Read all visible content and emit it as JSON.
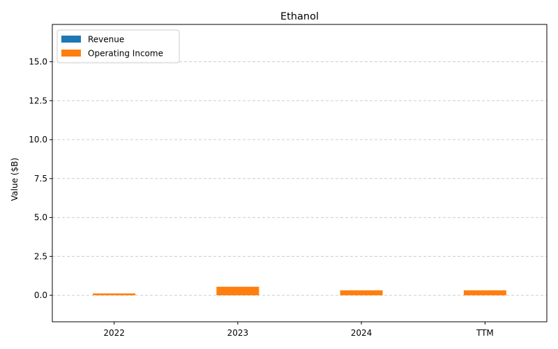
{
  "chart_data": {
    "type": "bar",
    "title": "Ethanol",
    "xlabel": "",
    "ylabel": "Value ($B)",
    "categories": [
      "2022",
      "2023",
      "2024",
      "TTM"
    ],
    "series": [
      {
        "name": "Revenue",
        "color": "#1f77b4",
        "values": [
          0,
          0,
          0,
          0
        ]
      },
      {
        "name": "Operating Income",
        "color": "#ff7f0e",
        "values": [
          0.12,
          0.55,
          0.32,
          0.32
        ]
      }
    ],
    "ylim": [
      -1.7,
      17.4
    ],
    "yticks": [
      0.0,
      2.5,
      5.0,
      7.5,
      10.0,
      12.5,
      15.0
    ],
    "ytick_labels": [
      "0.0",
      "2.5",
      "5.0",
      "7.5",
      "10.0",
      "12.5",
      "15.0"
    ],
    "grid": true,
    "legend": "top-left"
  }
}
